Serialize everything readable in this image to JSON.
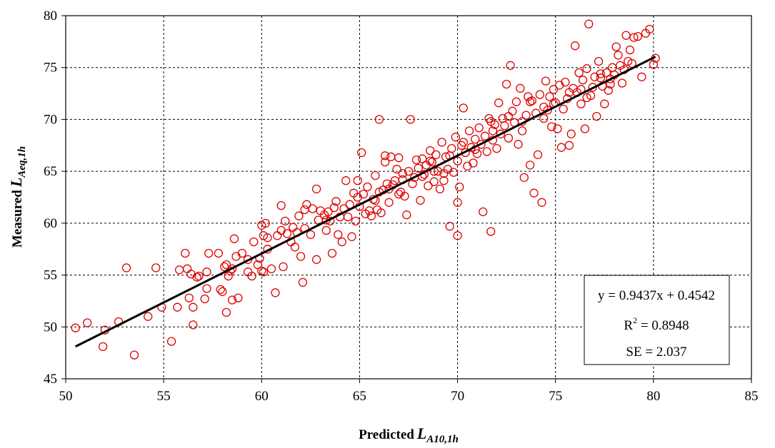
{
  "chart_data": {
    "type": "scatter",
    "title": "",
    "xlabel": {
      "prefix": "Predicted",
      "symbol": "L",
      "subscript": "A10,1h"
    },
    "ylabel": {
      "prefix": "Measured",
      "symbol": "L",
      "subscript": "Aeq,1h"
    },
    "xlim": [
      50,
      85
    ],
    "ylim": [
      45,
      80
    ],
    "xticks": [
      "50",
      "55",
      "60",
      "65",
      "70",
      "75",
      "80",
      "85"
    ],
    "yticks": [
      "45",
      "50",
      "55",
      "60",
      "65",
      "70",
      "75",
      "80"
    ],
    "grid": true,
    "grid_style": "dashed",
    "marker": "open-circle",
    "marker_color": "#e00000",
    "line_color": "#000000",
    "trendline": {
      "slope": 0.9437,
      "intercept": 0.4542,
      "x_range": [
        50.5,
        80.1
      ]
    },
    "stats": {
      "equation": "y = 0.9437x + 0.4542",
      "r2_prefix": "R",
      "r2_exp": "2",
      "r2_value": " = 0.8948",
      "se": "SE = 2.037"
    },
    "points": [
      [
        50.5,
        49.9
      ],
      [
        51.1,
        50.4
      ],
      [
        52.0,
        49.7
      ],
      [
        51.9,
        48.1
      ],
      [
        52.7,
        50.5
      ],
      [
        53.1,
        55.7
      ],
      [
        53.5,
        47.3
      ],
      [
        54.2,
        51.0
      ],
      [
        54.6,
        55.7
      ],
      [
        54.9,
        51.9
      ],
      [
        55.4,
        48.6
      ],
      [
        55.7,
        51.9
      ],
      [
        55.8,
        55.5
      ],
      [
        56.1,
        57.1
      ],
      [
        56.2,
        55.6
      ],
      [
        56.3,
        52.8
      ],
      [
        56.5,
        51.9
      ],
      [
        56.5,
        50.2
      ],
      [
        56.7,
        54.8
      ],
      [
        56.4,
        55.1
      ],
      [
        56.8,
        54.9
      ],
      [
        57.1,
        52.7
      ],
      [
        57.2,
        55.3
      ],
      [
        57.3,
        57.1
      ],
      [
        57.8,
        57.1
      ],
      [
        57.9,
        53.6
      ],
      [
        58.0,
        53.4
      ],
      [
        58.1,
        55.8
      ],
      [
        58.2,
        51.4
      ],
      [
        58.3,
        54.9
      ],
      [
        58.4,
        55.4
      ],
      [
        58.5,
        55.6
      ],
      [
        58.6,
        58.5
      ],
      [
        58.7,
        56.8
      ],
      [
        58.8,
        52.8
      ],
      [
        58.5,
        52.6
      ],
      [
        59.0,
        57.1
      ],
      [
        59.3,
        55.3
      ],
      [
        59.5,
        54.9
      ],
      [
        59.6,
        58.2
      ],
      [
        59.8,
        56.0
      ],
      [
        59.9,
        56.6
      ],
      [
        60.0,
        55.4
      ],
      [
        60.1,
        55.3
      ],
      [
        60.2,
        60.0
      ],
      [
        60.0,
        59.8
      ],
      [
        60.1,
        58.8
      ],
      [
        60.3,
        57.5
      ],
      [
        60.5,
        55.6
      ],
      [
        60.7,
        53.3
      ],
      [
        60.8,
        58.8
      ],
      [
        61.0,
        61.7
      ],
      [
        61.1,
        55.8
      ],
      [
        61.3,
        59.0
      ],
      [
        61.0,
        59.3
      ],
      [
        61.5,
        58.2
      ],
      [
        61.6,
        59.6
      ],
      [
        61.7,
        57.7
      ],
      [
        61.8,
        59.1
      ],
      [
        61.9,
        60.7
      ],
      [
        62.0,
        56.8
      ],
      [
        62.1,
        54.3
      ],
      [
        62.2,
        59.5
      ],
      [
        62.3,
        61.8
      ],
      [
        62.5,
        58.9
      ],
      [
        62.6,
        61.4
      ],
      [
        62.8,
        56.5
      ],
      [
        62.8,
        63.3
      ],
      [
        62.9,
        60.3
      ],
      [
        63.0,
        61.2
      ],
      [
        63.2,
        60.8
      ],
      [
        63.3,
        59.3
      ],
      [
        63.4,
        61.1
      ],
      [
        63.5,
        60.2
      ],
      [
        63.6,
        57.1
      ],
      [
        63.7,
        61.5
      ],
      [
        63.8,
        62.1
      ],
      [
        63.9,
        58.9
      ],
      [
        64.0,
        60.6
      ],
      [
        64.1,
        58.2
      ],
      [
        64.2,
        61.4
      ],
      [
        64.3,
        64.1
      ],
      [
        64.4,
        60.6
      ],
      [
        64.5,
        61.8
      ],
      [
        64.6,
        58.7
      ],
      [
        64.7,
        62.9
      ],
      [
        64.8,
        60.2
      ],
      [
        64.9,
        64.1
      ],
      [
        65.0,
        61.6
      ],
      [
        65.1,
        66.8
      ],
      [
        65.2,
        62.8
      ],
      [
        65.3,
        60.9
      ],
      [
        65.4,
        63.5
      ],
      [
        65.5,
        61.2
      ],
      [
        65.6,
        60.7
      ],
      [
        65.7,
        62.3
      ],
      [
        65.8,
        64.6
      ],
      [
        65.9,
        61.3
      ],
      [
        66.0,
        63.0
      ],
      [
        66.0,
        70.0
      ],
      [
        66.1,
        61.0
      ],
      [
        66.2,
        63.2
      ],
      [
        66.3,
        65.9
      ],
      [
        66.4,
        63.8
      ],
      [
        66.5,
        62.0
      ],
      [
        66.6,
        66.4
      ],
      [
        66.7,
        63.7
      ],
      [
        66.8,
        64.1
      ],
      [
        66.9,
        65.2
      ],
      [
        67.0,
        66.3
      ],
      [
        67.1,
        63.0
      ],
      [
        67.2,
        64.8
      ],
      [
        67.3,
        62.6
      ],
      [
        67.4,
        60.8
      ],
      [
        67.5,
        65.0
      ],
      [
        67.6,
        70.0
      ],
      [
        67.7,
        63.8
      ],
      [
        67.8,
        64.4
      ],
      [
        67.9,
        66.1
      ],
      [
        68.0,
        65.3
      ],
      [
        68.1,
        62.2
      ],
      [
        68.2,
        66.2
      ],
      [
        68.3,
        64.7
      ],
      [
        68.4,
        65.6
      ],
      [
        68.5,
        63.6
      ],
      [
        68.6,
        67.0
      ],
      [
        68.7,
        65.9
      ],
      [
        68.8,
        64.0
      ],
      [
        68.9,
        66.6
      ],
      [
        69.0,
        65.0
      ],
      [
        69.1,
        63.3
      ],
      [
        69.2,
        67.8
      ],
      [
        69.3,
        64.8
      ],
      [
        69.4,
        66.4
      ],
      [
        69.5,
        65.2
      ],
      [
        69.6,
        59.7
      ],
      [
        69.7,
        67.2
      ],
      [
        69.8,
        64.9
      ],
      [
        69.9,
        68.3
      ],
      [
        70.0,
        66.0
      ],
      [
        70.0,
        58.8
      ],
      [
        70.0,
        62.0
      ],
      [
        70.1,
        63.5
      ],
      [
        70.2,
        67.5
      ],
      [
        70.3,
        71.1
      ],
      [
        70.4,
        66.8
      ],
      [
        70.5,
        65.5
      ],
      [
        70.6,
        68.9
      ],
      [
        70.7,
        67.3
      ],
      [
        70.8,
        65.8
      ],
      [
        70.9,
        68.1
      ],
      [
        71.0,
        66.7
      ],
      [
        71.1,
        69.2
      ],
      [
        71.2,
        67.6
      ],
      [
        71.3,
        61.1
      ],
      [
        71.4,
        68.4
      ],
      [
        71.5,
        66.9
      ],
      [
        71.6,
        70.1
      ],
      [
        71.7,
        59.2
      ],
      [
        71.8,
        68.0
      ],
      [
        71.9,
        69.5
      ],
      [
        72.0,
        67.2
      ],
      [
        72.1,
        71.6
      ],
      [
        72.2,
        68.6
      ],
      [
        72.3,
        70.1
      ],
      [
        72.4,
        69.4
      ],
      [
        72.5,
        73.4
      ],
      [
        72.6,
        68.2
      ],
      [
        72.7,
        75.2
      ],
      [
        72.8,
        70.8
      ],
      [
        72.9,
        69.7
      ],
      [
        73.0,
        71.7
      ],
      [
        73.1,
        67.6
      ],
      [
        73.2,
        73.0
      ],
      [
        73.3,
        68.9
      ],
      [
        73.4,
        64.4
      ],
      [
        73.5,
        70.4
      ],
      [
        73.6,
        72.2
      ],
      [
        73.7,
        65.6
      ],
      [
        73.8,
        71.8
      ],
      [
        73.9,
        62.9
      ],
      [
        74.0,
        70.6
      ],
      [
        74.1,
        66.6
      ],
      [
        74.2,
        72.4
      ],
      [
        74.3,
        62.0
      ],
      [
        74.4,
        71.2
      ],
      [
        74.5,
        73.7
      ],
      [
        74.6,
        70.9
      ],
      [
        74.7,
        72.2
      ],
      [
        74.8,
        69.3
      ],
      [
        74.9,
        72.9
      ],
      [
        75.0,
        71.6
      ],
      [
        75.1,
        69.1
      ],
      [
        75.2,
        73.3
      ],
      [
        75.3,
        67.3
      ],
      [
        75.4,
        71.0
      ],
      [
        75.5,
        73.6
      ],
      [
        75.6,
        72.0
      ],
      [
        75.7,
        67.5
      ],
      [
        75.8,
        68.6
      ],
      [
        75.9,
        73.0
      ],
      [
        76.0,
        77.1
      ],
      [
        76.1,
        72.6
      ],
      [
        76.2,
        74.5
      ],
      [
        76.3,
        71.5
      ],
      [
        76.4,
        73.8
      ],
      [
        76.5,
        69.1
      ],
      [
        76.6,
        74.9
      ],
      [
        76.7,
        79.2
      ],
      [
        76.8,
        72.3
      ],
      [
        76.9,
        73.1
      ],
      [
        77.0,
        74.1
      ],
      [
        77.1,
        70.3
      ],
      [
        77.2,
        75.6
      ],
      [
        77.3,
        74.0
      ],
      [
        77.4,
        73.2
      ],
      [
        77.5,
        71.5
      ],
      [
        77.6,
        74.5
      ],
      [
        77.7,
        72.8
      ],
      [
        77.8,
        73.4
      ],
      [
        77.9,
        75.0
      ],
      [
        78.0,
        74.3
      ],
      [
        78.1,
        77.0
      ],
      [
        78.2,
        76.2
      ],
      [
        78.3,
        75.2
      ],
      [
        78.4,
        73.5
      ],
      [
        78.5,
        74.8
      ],
      [
        78.6,
        78.1
      ],
      [
        78.7,
        75.6
      ],
      [
        78.8,
        76.7
      ],
      [
        78.9,
        75.4
      ],
      [
        79.0,
        77.9
      ],
      [
        79.2,
        78.0
      ],
      [
        79.4,
        74.1
      ],
      [
        79.6,
        78.3
      ],
      [
        79.8,
        78.7
      ],
      [
        80.0,
        75.3
      ],
      [
        80.1,
        75.9
      ],
      [
        66.3,
        66.5
      ],
      [
        68.8,
        65.0
      ],
      [
        69.3,
        64.1
      ],
      [
        70.9,
        67.1
      ],
      [
        71.7,
        69.8
      ],
      [
        72.6,
        70.3
      ],
      [
        73.7,
        71.7
      ],
      [
        74.4,
        70.1
      ],
      [
        75.7,
        72.6
      ],
      [
        76.6,
        72.1
      ],
      [
        77.3,
        74.4
      ],
      [
        67.0,
        62.8
      ],
      [
        68.2,
        64.5
      ],
      [
        69.6,
        66.5
      ],
      [
        66.5,
        63.3
      ],
      [
        64.9,
        62.5
      ],
      [
        63.3,
        60.3
      ],
      [
        62.2,
        61.3
      ],
      [
        61.2,
        60.2
      ],
      [
        60.3,
        58.6
      ],
      [
        59.3,
        56.5
      ],
      [
        58.2,
        56.0
      ],
      [
        57.2,
        53.7
      ],
      [
        65.8,
        62.2
      ],
      [
        67.2,
        64.2
      ],
      [
        68.6,
        66.0
      ],
      [
        70.3,
        67.8
      ],
      [
        71.8,
        68.9
      ],
      [
        73.3,
        69.8
      ],
      [
        74.9,
        71.5
      ],
      [
        76.3,
        72.9
      ],
      [
        77.8,
        73.9
      ]
    ]
  }
}
